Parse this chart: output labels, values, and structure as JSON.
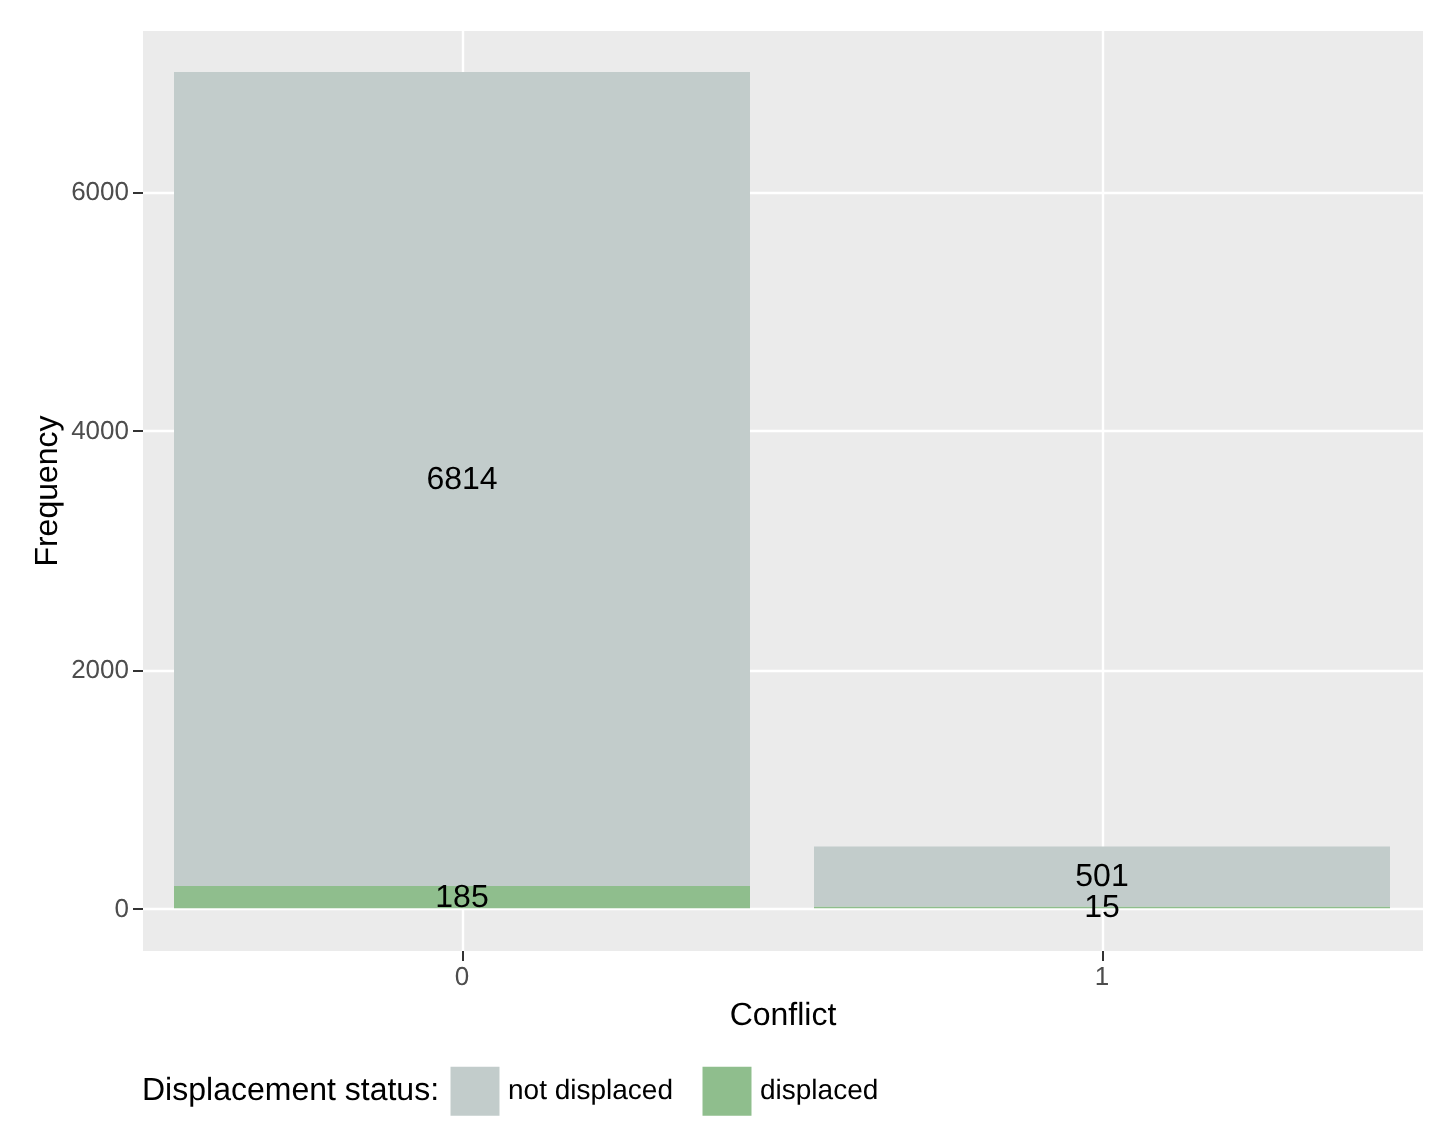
{
  "chart_data": {
    "type": "bar",
    "xlabel": "Conflict",
    "ylabel": "Frequency",
    "legend_title": "Displacement status:",
    "categories": [
      "0",
      "1"
    ],
    "stacked": true,
    "data_labels": true,
    "grid": true,
    "legend": "bottom",
    "ylim": [
      -350,
      7350
    ],
    "yticks": [
      0,
      2000,
      4000,
      6000
    ],
    "series": [
      {
        "name": "displaced",
        "color": "#8fbe8d",
        "values": [
          185,
          15
        ]
      },
      {
        "name": "not displaced",
        "color": "#c2cccb",
        "values": [
          6814,
          501
        ]
      }
    ]
  }
}
